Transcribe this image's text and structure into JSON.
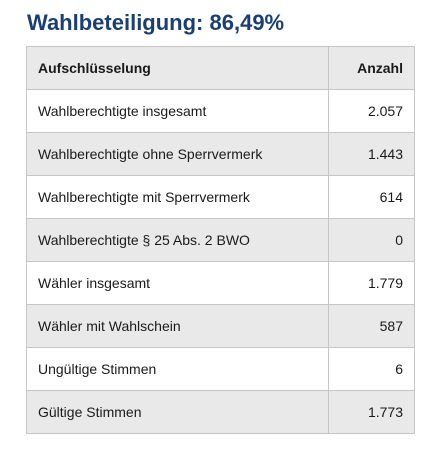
{
  "title": "Wahlbeteiligung: 86,49%",
  "table": {
    "headers": {
      "label": "Aufschlüsselung",
      "count": "Anzahl"
    },
    "rows": [
      {
        "label": "Wahlberechtigte insgesamt",
        "count": "2.057"
      },
      {
        "label": "Wahlberechtigte ohne Sperrvermerk",
        "count": "1.443"
      },
      {
        "label": "Wahlberechtigte mit Sperrvermerk",
        "count": "614"
      },
      {
        "label": "Wahlberechtigte § 25 Abs. 2 BWO",
        "count": "0"
      },
      {
        "label": "Wähler insgesamt",
        "count": "1.779"
      },
      {
        "label": "Wähler mit Wahlschein",
        "count": "587"
      },
      {
        "label": "Ungültige Stimmen",
        "count": "6"
      },
      {
        "label": "Gültige Stimmen",
        "count": "1.773"
      }
    ]
  }
}
